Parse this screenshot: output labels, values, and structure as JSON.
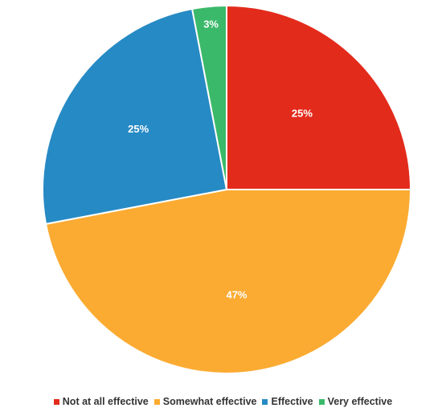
{
  "chart_data": {
    "type": "pie",
    "title": "",
    "categories": [
      "Not at all effective",
      "Somewhat effective",
      "Effective",
      "Very effective"
    ],
    "values": [
      25,
      47,
      25,
      3
    ],
    "value_labels": [
      "25%",
      "47%",
      "25%",
      "3%"
    ],
    "colors": [
      "#e32b1c",
      "#fbab32",
      "#268ac4",
      "#3bb96a"
    ],
    "start": "12 o'clock, clockwise",
    "legend_position": "bottom"
  }
}
